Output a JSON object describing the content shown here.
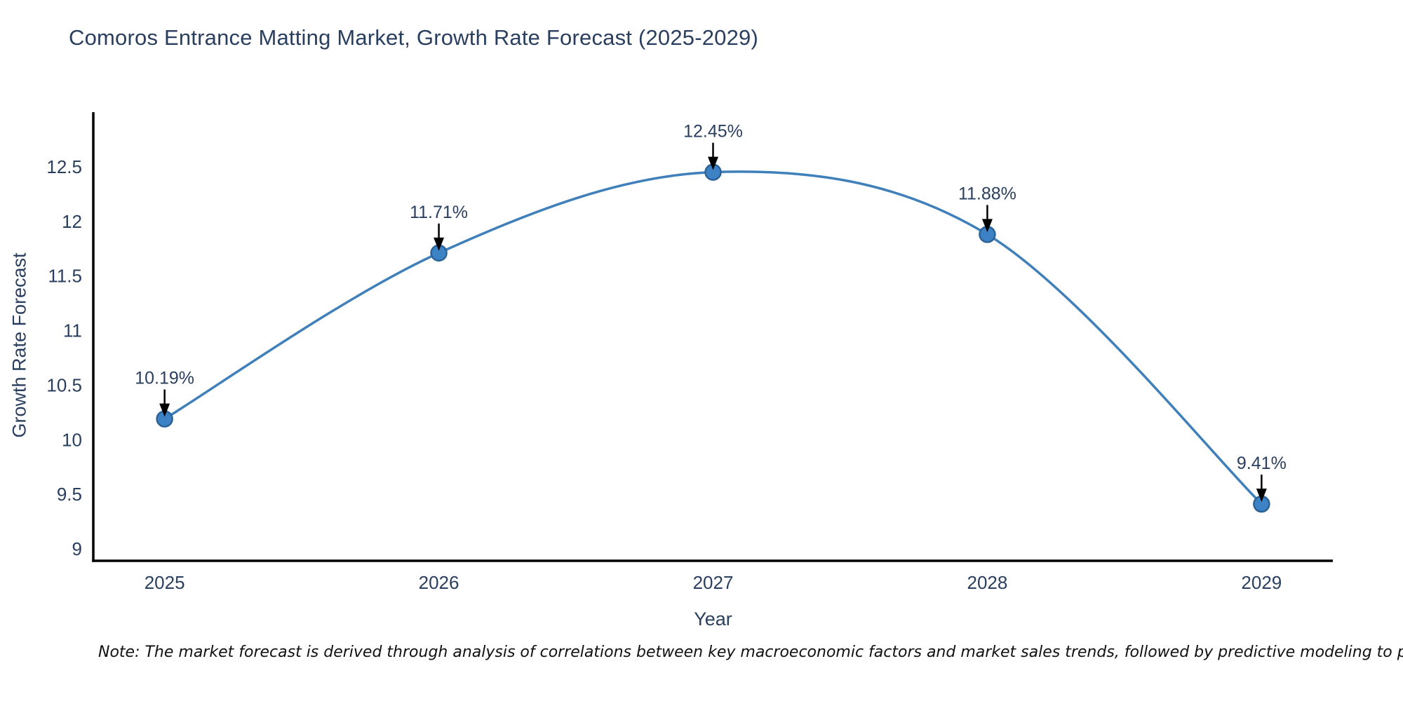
{
  "chart_data": {
    "type": "line",
    "title": "Comoros Entrance Matting Market, Growth Rate Forecast (2025-2029)",
    "xlabel": "Year",
    "ylabel": "Growth Rate Forecast",
    "note": "Note: The market forecast is derived through analysis of correlations between key macroeconomic factors and market sales trends, followed by predictive modeling to project future sal",
    "x": [
      2025,
      2026,
      2027,
      2028,
      2029
    ],
    "values": [
      10.19,
      11.71,
      12.45,
      11.88,
      9.41
    ],
    "point_labels": [
      "10.19%",
      "11.71%",
      "12.45%",
      "11.88%",
      "9.41%"
    ],
    "xticks": [
      2025,
      2026,
      2027,
      2028,
      2029
    ],
    "yticks": [
      9,
      9.5,
      10,
      10.5,
      11,
      11.5,
      12,
      12.5
    ],
    "xlim": [
      2024.74,
      2029.26
    ],
    "ylim": [
      8.89,
      13.0
    ],
    "grid": false,
    "legend": false,
    "curve_style": "smooth-spline",
    "annotation_style": "value-label-with-down-arrow",
    "colors": {
      "line": "#3f7fba",
      "marker_fill": "#3d82c4",
      "marker_edge": "#2b6399",
      "arrow": "#000000",
      "axis": "#000000",
      "tick_text": "#2a3f5f",
      "title_text": "#2a3f5f",
      "note_text": "#111111",
      "background": "#ffffff"
    }
  }
}
